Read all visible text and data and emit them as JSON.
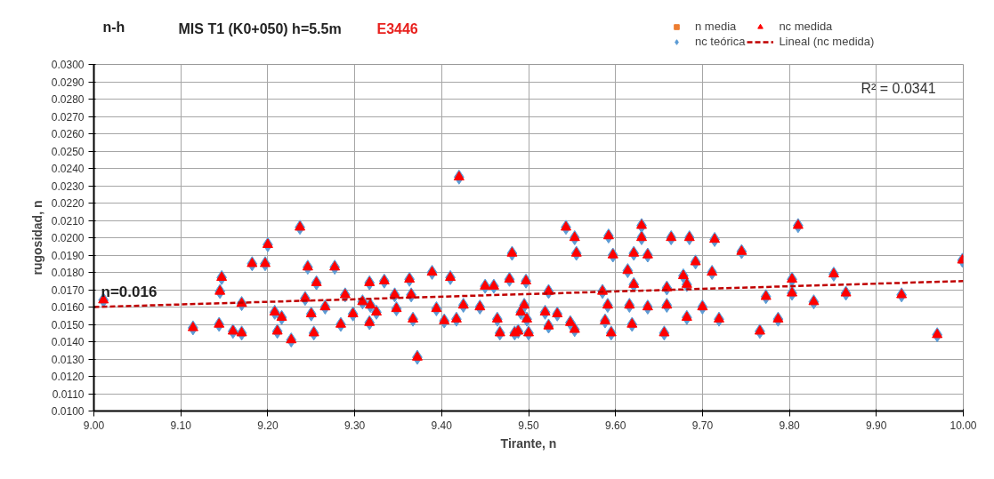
{
  "chart_data": {
    "type": "scatter",
    "title": "MIS T1 (K0+050)   h=5.5m",
    "xlabel": "Tirante, n",
    "ylabel": "rugosidad, n",
    "annotations": [
      "n-h",
      "E3446",
      {
        "text": "n=0.016",
        "x": 9.0,
        "y": 0.016
      },
      "R² = 0.0341"
    ],
    "x": [
      9.011,
      9.114,
      9.144,
      9.145,
      9.147,
      9.16,
      9.17,
      9.17,
      9.182,
      9.197,
      9.2,
      9.208,
      9.216,
      9.211,
      9.227,
      9.237,
      9.246,
      9.277,
      9.256,
      9.243,
      9.25,
      9.266,
      9.253,
      9.289,
      9.284,
      9.298,
      9.309,
      9.317,
      9.318,
      9.317,
      9.325,
      9.334,
      9.346,
      9.348,
      9.363,
      9.365,
      9.367,
      9.372,
      9.389,
      9.394,
      9.41,
      9.403,
      9.417,
      9.42,
      9.425,
      9.444,
      9.45,
      9.46,
      9.464,
      9.467,
      9.481,
      9.478,
      9.484,
      9.491,
      9.497,
      9.495,
      9.498,
      9.488,
      9.5,
      9.523,
      9.519,
      9.533,
      9.523,
      9.543,
      9.553,
      9.555,
      9.548,
      9.553,
      9.585,
      9.591,
      9.588,
      9.595,
      9.592,
      9.597,
      9.616,
      9.621,
      9.614,
      9.621,
      9.63,
      9.63,
      9.637,
      9.619,
      9.637,
      9.659,
      9.659,
      9.656,
      9.664,
      9.685,
      9.678,
      9.692,
      9.682,
      9.682,
      9.7,
      9.711,
      9.714,
      9.719,
      9.745,
      9.81,
      9.803,
      9.803,
      9.773,
      9.787,
      9.766,
      9.828,
      9.851,
      9.865,
      9.929,
      9.97,
      9.999
    ],
    "series": [
      {
        "name": "n media",
        "color": "#ed7d31",
        "marker": "square",
        "values": [
          null,
          null,
          null,
          null,
          null,
          null,
          null,
          null,
          null,
          null,
          null,
          null,
          null,
          null,
          null,
          null,
          null,
          null,
          null,
          null,
          null,
          null,
          null,
          null,
          null,
          null,
          null,
          null,
          null,
          null,
          null,
          null,
          null,
          null,
          null,
          null,
          null,
          null,
          null,
          null,
          null,
          null,
          null,
          null,
          null,
          null,
          null,
          null,
          null,
          null,
          null,
          null,
          null,
          null,
          null,
          null,
          null,
          null,
          null,
          null,
          null,
          null,
          null,
          null,
          null,
          null,
          null,
          null,
          null,
          null,
          null,
          null,
          null,
          null,
          null,
          null,
          null,
          null,
          null,
          null,
          null,
          null,
          null,
          null,
          null,
          null,
          null,
          null,
          null,
          null,
          null,
          null,
          null,
          null,
          null,
          null,
          null,
          null,
          null,
          null,
          null,
          null,
          null,
          null,
          null,
          null,
          null,
          null,
          null
        ]
      },
      {
        "name": "nc teórica",
        "color": "#5b9bd5",
        "marker": "diamond",
        "values": [
          0.0164,
          0.0148,
          0.015,
          0.0169,
          0.0177,
          0.0146,
          0.0145,
          0.0162,
          0.0185,
          0.0185,
          0.0196,
          0.0157,
          0.0154,
          0.0146,
          0.0141,
          0.0206,
          0.0183,
          0.0183,
          0.0174,
          0.0165,
          0.0156,
          0.016,
          0.0145,
          0.0167,
          0.015,
          0.0156,
          0.0163,
          0.0174,
          0.0161,
          0.0151,
          0.0157,
          0.0175,
          0.0167,
          0.0159,
          0.0176,
          0.0167,
          0.0153,
          0.0131,
          0.018,
          0.0159,
          0.0177,
          0.0152,
          0.0153,
          0.0235,
          0.0161,
          0.016,
          0.0172,
          0.0172,
          0.0153,
          0.0145,
          0.0191,
          0.0176,
          0.0145,
          0.0157,
          0.0175,
          0.0161,
          0.0153,
          0.0146,
          0.0145,
          0.0169,
          0.0157,
          0.0156,
          0.0149,
          0.0206,
          0.02,
          0.0191,
          0.0151,
          0.0147,
          0.0169,
          0.0161,
          0.0152,
          0.0145,
          0.0201,
          0.019,
          0.0161,
          0.0173,
          0.0181,
          0.0191,
          0.0207,
          0.02,
          0.019,
          0.015,
          0.016,
          0.0171,
          0.0161,
          0.0145,
          0.02,
          0.02,
          0.0178,
          0.0186,
          0.0173,
          0.0154,
          0.016,
          0.018,
          0.0199,
          0.0153,
          0.0192,
          0.0207,
          0.0176,
          0.0168,
          0.0166,
          0.0153,
          0.0146,
          0.0163,
          0.0179,
          0.0168,
          0.0167,
          0.0144,
          0.0187
        ]
      },
      {
        "name": "nc medida",
        "color": "#ff0000",
        "marker": "triangle",
        "values": [
          0.0164,
          0.0148,
          0.015,
          0.0169,
          0.0177,
          0.0146,
          0.0145,
          0.0162,
          0.0185,
          0.0185,
          0.0196,
          0.0157,
          0.0154,
          0.0146,
          0.0141,
          0.0206,
          0.0183,
          0.0183,
          0.0174,
          0.0165,
          0.0156,
          0.016,
          0.0145,
          0.0167,
          0.015,
          0.0156,
          0.0163,
          0.0174,
          0.0161,
          0.0151,
          0.0157,
          0.0175,
          0.0167,
          0.0159,
          0.0176,
          0.0167,
          0.0153,
          0.0131,
          0.018,
          0.0159,
          0.0177,
          0.0152,
          0.0153,
          0.0235,
          0.0161,
          0.016,
          0.0172,
          0.0172,
          0.0153,
          0.0145,
          0.0191,
          0.0176,
          0.0145,
          0.0157,
          0.0175,
          0.0161,
          0.0153,
          0.0146,
          0.0145,
          0.0169,
          0.0157,
          0.0156,
          0.0149,
          0.0206,
          0.02,
          0.0191,
          0.0151,
          0.0147,
          0.0169,
          0.0161,
          0.0152,
          0.0145,
          0.0201,
          0.019,
          0.0161,
          0.0173,
          0.0181,
          0.0191,
          0.0207,
          0.02,
          0.019,
          0.015,
          0.016,
          0.0171,
          0.0161,
          0.0145,
          0.02,
          0.02,
          0.0178,
          0.0186,
          0.0173,
          0.0154,
          0.016,
          0.018,
          0.0199,
          0.0153,
          0.0192,
          0.0207,
          0.0176,
          0.0168,
          0.0166,
          0.0153,
          0.0146,
          0.0163,
          0.0179,
          0.0168,
          0.0167,
          0.0144,
          0.0187
        ]
      },
      {
        "name": "Lineal (nc medida)",
        "type": "line",
        "color": "#c00000",
        "line_style": "dashed",
        "x": [
          9.0,
          10.0
        ],
        "values": [
          0.016,
          0.0175
        ]
      }
    ],
    "xlim": [
      9.0,
      10.0
    ],
    "xticks": [
      {
        "value": 9.0,
        "label": "9.00"
      },
      {
        "value": 9.1,
        "label": "9.10"
      },
      {
        "value": 9.2,
        "label": "9.20"
      },
      {
        "value": 9.3,
        "label": "9.30"
      },
      {
        "value": 9.4,
        "label": "9.40"
      },
      {
        "value": 9.5,
        "label": "9.50"
      },
      {
        "value": 9.6,
        "label": "9.60"
      },
      {
        "value": 9.7,
        "label": "9.70"
      },
      {
        "value": 9.8,
        "label": "9.80"
      },
      {
        "value": 9.9,
        "label": "9.90"
      },
      {
        "value": 10.0,
        "label": "10.00"
      }
    ],
    "ylim": [
      0.01,
      0.03
    ],
    "yticks": [
      {
        "value": 0.01,
        "label": "0.0100"
      },
      {
        "value": 0.011,
        "label": "0.0110"
      },
      {
        "value": 0.012,
        "label": "0.0120"
      },
      {
        "value": 0.013,
        "label": "0.0130"
      },
      {
        "value": 0.014,
        "label": "0.0140"
      },
      {
        "value": 0.015,
        "label": "0.0150"
      },
      {
        "value": 0.016,
        "label": "0.0160"
      },
      {
        "value": 0.017,
        "label": "0.0170"
      },
      {
        "value": 0.018,
        "label": "0.0180"
      },
      {
        "value": 0.019,
        "label": "0.0190"
      },
      {
        "value": 0.02,
        "label": "0.0200"
      },
      {
        "value": 0.021,
        "label": "0.0210"
      },
      {
        "value": 0.022,
        "label": "0.0220"
      },
      {
        "value": 0.023,
        "label": "0.0230"
      },
      {
        "value": 0.024,
        "label": "0.0240"
      },
      {
        "value": 0.025,
        "label": "0.0250"
      },
      {
        "value": 0.026,
        "label": "0.0260"
      },
      {
        "value": 0.027,
        "label": "0.0270"
      },
      {
        "value": 0.028,
        "label": "0.0280"
      },
      {
        "value": 0.029,
        "label": "0.0290"
      },
      {
        "value": 0.03,
        "label": "0.0300"
      }
    ],
    "grid": true,
    "legend": "top"
  }
}
